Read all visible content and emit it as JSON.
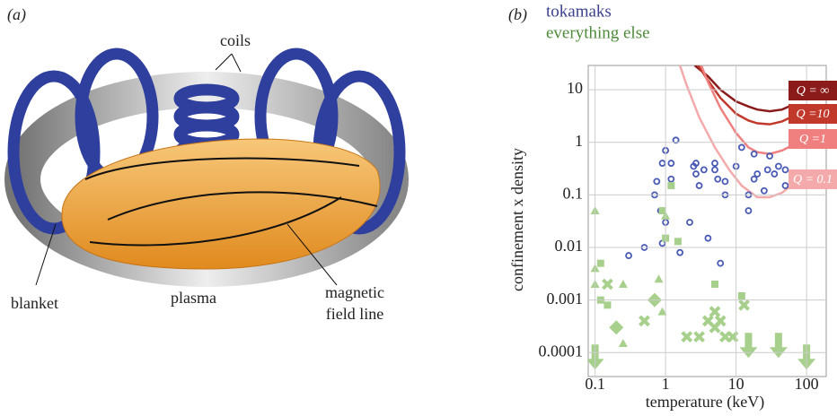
{
  "panel_a": {
    "label": "(a)",
    "coils": "coils",
    "blanket": "blanket",
    "plasma": "plasma",
    "field_line": [
      "magnetic",
      "field line"
    ]
  },
  "chart_data": {
    "type": "scatter",
    "panel_label": "(b)",
    "x_label": "temperature (keV)",
    "y_label": "confinement x density",
    "log_x": true,
    "log_y": true,
    "grid": true,
    "xlim": [
      0.08,
      190
    ],
    "ylim": [
      3.5e-05,
      29
    ],
    "xticks": [
      0.1,
      1,
      10,
      100
    ],
    "yticks": [
      0.0001,
      0.001,
      0.01,
      0.1,
      1,
      10
    ],
    "series": [
      {
        "name": "tokamaks",
        "color": "#4a5bb5",
        "marker": "circle",
        "x": [
          0.7,
          0.75,
          0.9,
          1.0,
          1.2,
          1.4,
          0.85,
          1.0,
          0.9,
          1.2,
          1.6,
          2.2,
          2.5,
          2.7,
          2.7,
          3,
          3.5,
          4,
          5,
          5,
          5.5,
          6,
          7,
          7,
          10,
          12,
          15,
          15,
          18,
          18,
          20,
          25,
          28,
          30,
          35,
          40,
          50,
          50,
          0.3,
          0.5
        ],
        "y": [
          0.1,
          0.18,
          0.4,
          0.7,
          0.4,
          1.1,
          0.05,
          0.03,
          0.012,
          0.2,
          0.008,
          0.03,
          0.35,
          0.4,
          0.25,
          0.15,
          0.3,
          0.015,
          0.4,
          0.3,
          0.2,
          0.005,
          0.1,
          0.18,
          0.35,
          0.8,
          0.05,
          0.1,
          0.6,
          0.2,
          0.25,
          0.12,
          0.3,
          0.55,
          0.25,
          0.35,
          0.15,
          0.3,
          0.007,
          0.01
        ]
      },
      {
        "name": "everything else",
        "color": "#a8d08d",
        "marker": "mixed",
        "markers": [
          "triangle",
          "triangle",
          "square",
          "triangle",
          "square",
          "square",
          "cross",
          "diamond",
          "triangle",
          "triangle",
          "cross",
          "diamond",
          "triangle",
          "triangle",
          "square",
          "triangle",
          "square",
          "square",
          "square",
          "cross",
          "cross",
          "cross",
          "cross",
          "cross",
          "cross",
          "cross",
          "square",
          "square",
          "cross",
          "cross",
          "arrow",
          "arrow",
          "arrow",
          "arrow"
        ],
        "x": [
          0.1,
          0.1,
          0.12,
          0.1,
          0.12,
          0.15,
          0.15,
          0.2,
          0.25,
          0.25,
          0.5,
          0.7,
          0.8,
          0.9,
          0.9,
          1.0,
          1.2,
          1.0,
          1.5,
          2,
          3,
          4,
          5,
          5,
          6,
          7,
          5,
          12,
          13,
          9,
          0.1,
          15,
          40,
          100
        ],
        "y": [
          0.05,
          0.004,
          0.005,
          0.002,
          0.001,
          0.0008,
          0.002,
          0.0003,
          0.002,
          0.00015,
          0.0004,
          0.001,
          0.0025,
          0.0006,
          0.05,
          0.04,
          0.15,
          0.015,
          0.013,
          0.0002,
          0.0002,
          0.0004,
          0.0006,
          0.0003,
          0.0004,
          0.0002,
          0.002,
          0.0012,
          0.0008,
          0.0002,
          6e-05,
          0.0001,
          0.0001,
          6e-05
        ]
      }
    ],
    "curves": [
      {
        "name": "Q = ∞",
        "color": "#8b1a1a",
        "x": [
          2.6,
          4,
          6,
          10,
          15,
          20,
          30,
          45,
          60
        ],
        "y": [
          29,
          18,
          10,
          6,
          4.8,
          4.2,
          3.9,
          4.2,
          5
        ]
      },
      {
        "name": "Q =10",
        "color": "#c0392b",
        "x": [
          2.9,
          4,
          6,
          10,
          15,
          20,
          30,
          45,
          60
        ],
        "y": [
          29,
          15,
          7,
          3.5,
          2.6,
          2.3,
          2.2,
          2.5,
          3
        ]
      },
      {
        "name": "Q =1",
        "color": "#f08080",
        "x": [
          3.2,
          4,
          6,
          10,
          15,
          20,
          30,
          45,
          60
        ],
        "y": [
          29,
          14,
          4.5,
          1.5,
          0.8,
          0.65,
          0.6,
          0.7,
          0.85
        ]
      },
      {
        "name": "Q = 0.1",
        "color": "#f4aaaa",
        "x": [
          1.6,
          2,
          3,
          5,
          8,
          12,
          20,
          30,
          45,
          60
        ],
        "y": [
          29,
          12,
          3,
          0.8,
          0.3,
          0.15,
          0.09,
          0.09,
          0.11,
          0.15
        ]
      }
    ]
  }
}
